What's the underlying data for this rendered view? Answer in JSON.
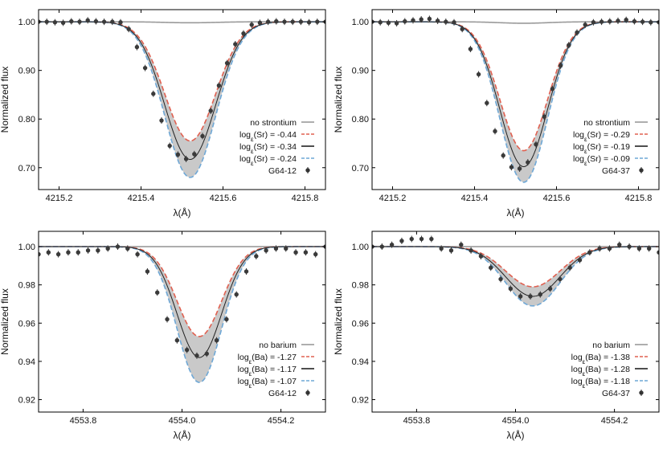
{
  "figure": {
    "ylabel": "Normalized flux",
    "xlabel": "λ(Å)"
  },
  "chart_data": [
    {
      "type": "line",
      "panel": "top-left",
      "xlabel": "λ(Å)",
      "ylabel": "Normalized flux",
      "xlim": [
        4215.15,
        4215.85
      ],
      "ylim": [
        0.655,
        1.025
      ],
      "xticks": [
        "4215.2",
        "4215.4",
        "4215.6",
        "4215.8"
      ],
      "yticks": [
        "0.70",
        "0.80",
        "0.90",
        "1.00"
      ],
      "grid": false,
      "legend_position": "bottom-right",
      "legend": [
        {
          "label_main": "no strontium",
          "label_sub": "",
          "label_rest": "",
          "style": "solid",
          "color": "#9a9a9a",
          "marker": "line"
        },
        {
          "label_main": "log",
          "label_sub": "ε",
          "label_rest": "(Sr) = -0.44",
          "style": "dashed",
          "color": "#e06050",
          "marker": "line"
        },
        {
          "label_main": "log",
          "label_sub": "ε",
          "label_rest": "(Sr) = -0.34",
          "style": "solid",
          "color": "#222222",
          "marker": "line"
        },
        {
          "label_main": "log",
          "label_sub": "ε",
          "label_rest": "(Sr) = -0.24",
          "style": "dashed",
          "color": "#6fa8d6",
          "marker": "line"
        },
        {
          "label_main": "G64-12",
          "label_sub": "",
          "label_rest": "",
          "style": "none",
          "color": "#333333",
          "marker": "point"
        }
      ],
      "model": {
        "center": 4215.52,
        "sigma": 0.062,
        "continuum": 1.0,
        "depths": {
          "weak": 0.245,
          "best": 0.283,
          "strong": 0.32,
          "none": 0.002
        }
      },
      "observed": {
        "x": [
          4215.15,
          4215.17,
          4215.19,
          4215.21,
          4215.23,
          4215.25,
          4215.27,
          4215.29,
          4215.31,
          4215.33,
          4215.35,
          4215.37,
          4215.39,
          4215.41,
          4215.43,
          4215.45,
          4215.47,
          4215.49,
          4215.51,
          4215.53,
          4215.55,
          4215.57,
          4215.59,
          4215.61,
          4215.63,
          4215.65,
          4215.67,
          4215.69,
          4215.71,
          4215.73,
          4215.75,
          4215.77,
          4215.79,
          4215.81,
          4215.83,
          4215.85
        ],
        "y": [
          1.0,
          1.0,
          0.999,
          0.998,
          1.001,
          1.0,
          1.003,
          1.001,
          1.0,
          1.0,
          0.999,
          0.985,
          0.948,
          0.905,
          0.852,
          0.797,
          0.745,
          0.727,
          0.718,
          0.728,
          0.765,
          0.817,
          0.869,
          0.915,
          0.954,
          0.976,
          0.994,
          0.998,
          1.0,
          1.001,
          1.0,
          1.0,
          1.0,
          0.999,
          1.0,
          1.0
        ]
      }
    },
    {
      "type": "line",
      "panel": "top-right",
      "xlabel": "λ(Å)",
      "ylabel": "Normalized flux",
      "xlim": [
        4215.15,
        4215.85
      ],
      "ylim": [
        0.655,
        1.025
      ],
      "xticks": [
        "4215.2",
        "4215.4",
        "4215.6",
        "4215.8"
      ],
      "yticks": [
        "0.70",
        "0.80",
        "0.90",
        "1.00"
      ],
      "grid": false,
      "legend_position": "bottom-right",
      "legend": [
        {
          "label_main": "no strontium",
          "label_sub": "",
          "label_rest": "",
          "style": "solid",
          "color": "#9a9a9a",
          "marker": "line"
        },
        {
          "label_main": "log",
          "label_sub": "ε",
          "label_rest": "(Sr) = -0.29",
          "style": "dashed",
          "color": "#e06050",
          "marker": "line"
        },
        {
          "label_main": "log",
          "label_sub": "ε",
          "label_rest": "(Sr) = -0.19",
          "style": "solid",
          "color": "#222222",
          "marker": "line"
        },
        {
          "label_main": "log",
          "label_sub": "ε",
          "label_rest": "(Sr) = -0.09",
          "style": "dashed",
          "color": "#6fa8d6",
          "marker": "line"
        },
        {
          "label_main": "G64-37",
          "label_sub": "",
          "label_rest": "",
          "style": "none",
          "color": "#333333",
          "marker": "point"
        }
      ],
      "model": {
        "center": 4215.52,
        "sigma": 0.058,
        "continuum": 1.0,
        "depths": {
          "weak": 0.265,
          "best": 0.298,
          "strong": 0.33,
          "none": 0.003
        }
      },
      "observed": {
        "x": [
          4215.15,
          4215.17,
          4215.19,
          4215.21,
          4215.23,
          4215.25,
          4215.27,
          4215.29,
          4215.31,
          4215.33,
          4215.35,
          4215.37,
          4215.39,
          4215.41,
          4215.43,
          4215.45,
          4215.47,
          4215.49,
          4215.51,
          4215.53,
          4215.55,
          4215.57,
          4215.59,
          4215.61,
          4215.63,
          4215.65,
          4215.67,
          4215.69,
          4215.71,
          4215.73,
          4215.75,
          4215.77,
          4215.79,
          4215.81,
          4215.83,
          4215.85
        ],
        "y": [
          1.0,
          0.999,
          0.998,
          0.997,
          1.001,
          1.003,
          1.005,
          1.006,
          1.002,
          1.0,
          0.999,
          0.985,
          0.944,
          0.892,
          0.833,
          0.775,
          0.725,
          0.701,
          0.698,
          0.711,
          0.748,
          0.805,
          0.862,
          0.91,
          0.952,
          0.978,
          0.994,
          0.999,
          1.0,
          1.001,
          1.002,
          1.004,
          1.001,
          1.0,
          0.999,
          0.999
        ]
      }
    },
    {
      "type": "line",
      "panel": "bottom-left",
      "xlabel": "λ(Å)",
      "ylabel": "Normalized flux",
      "xlim": [
        4553.71,
        4554.29
      ],
      "ylim": [
        0.9135,
        1.008
      ],
      "xticks": [
        "4553.8",
        "4554.0",
        "4554.2"
      ],
      "yticks": [
        "0.92",
        "0.94",
        "0.96",
        "0.98",
        "1.00"
      ],
      "grid": false,
      "legend_position": "bottom-right",
      "legend": [
        {
          "label_main": "no barium",
          "label_sub": "",
          "label_rest": "",
          "style": "solid",
          "color": "#9a9a9a",
          "marker": "line"
        },
        {
          "label_main": "log",
          "label_sub": "ε",
          "label_rest": "(Ba) = -1.27",
          "style": "dashed",
          "color": "#e06050",
          "marker": "line"
        },
        {
          "label_main": "log",
          "label_sub": "ε",
          "label_rest": "(Ba) = -1.17",
          "style": "solid",
          "color": "#222222",
          "marker": "line"
        },
        {
          "label_main": "log",
          "label_sub": "ε",
          "label_rest": "(Ba) = -1.07",
          "style": "dashed",
          "color": "#6fa8d6",
          "marker": "line"
        },
        {
          "label_main": "G64-12",
          "label_sub": "",
          "label_rest": "",
          "style": "none",
          "color": "#333333",
          "marker": "point"
        }
      ],
      "model": {
        "center": 4554.035,
        "sigma": 0.045,
        "continuum": 1.0,
        "depths": {
          "weak": 0.047,
          "best": 0.058,
          "strong": 0.071,
          "none": 0.0
        }
      },
      "observed": {
        "x": [
          4553.71,
          4553.73,
          4553.75,
          4553.77,
          4553.79,
          4553.81,
          4553.83,
          4553.85,
          4553.87,
          4553.89,
          4553.91,
          4553.93,
          4553.95,
          4553.97,
          4553.99,
          4554.01,
          4554.03,
          4554.05,
          4554.07,
          4554.09,
          4554.11,
          4554.13,
          4554.15,
          4554.17,
          4554.19,
          4554.21,
          4554.23,
          4554.25,
          4554.27,
          4554.29
        ],
        "y": [
          0.996,
          0.997,
          0.996,
          0.997,
          0.997,
          0.998,
          0.998,
          0.999,
          1.0,
          0.999,
          0.996,
          0.987,
          0.976,
          0.962,
          0.951,
          0.946,
          0.943,
          0.944,
          0.951,
          0.962,
          0.975,
          0.987,
          0.995,
          0.998,
          0.999,
          0.999,
          0.997,
          0.997,
          0.996,
          1.0
        ]
      }
    },
    {
      "type": "line",
      "panel": "bottom-right",
      "xlabel": "λ(Å)",
      "ylabel": "Normalized flux",
      "xlim": [
        4553.71,
        4554.29
      ],
      "ylim": [
        0.9135,
        1.008
      ],
      "xticks": [
        "4553.8",
        "4554.0",
        "4554.2"
      ],
      "yticks": [
        "0.92",
        "0.94",
        "0.96",
        "0.98",
        "1.00"
      ],
      "grid": false,
      "legend_position": "bottom-right",
      "legend": [
        {
          "label_main": "no barium",
          "label_sub": "",
          "label_rest": "",
          "style": "solid",
          "color": "#9a9a9a",
          "marker": "line"
        },
        {
          "label_main": "log",
          "label_sub": "ε",
          "label_rest": "(Ba) = -1.38",
          "style": "dashed",
          "color": "#e06050",
          "marker": "line"
        },
        {
          "label_main": "log",
          "label_sub": "ε",
          "label_rest": "(Ba) = -1.28",
          "style": "solid",
          "color": "#222222",
          "marker": "line"
        },
        {
          "label_main": "log",
          "label_sub": "ε",
          "label_rest": "(Ba) = -1.18",
          "style": "dashed",
          "color": "#6fa8d6",
          "marker": "line"
        },
        {
          "label_main": "G64-37",
          "label_sub": "",
          "label_rest": "",
          "style": "none",
          "color": "#333333",
          "marker": "point"
        }
      ],
      "model": {
        "center": 4554.035,
        "sigma": 0.055,
        "continuum": 1.0,
        "depths": {
          "weak": 0.021,
          "best": 0.026,
          "strong": 0.031,
          "none": 0.0
        }
      },
      "observed": {
        "x": [
          4553.71,
          4553.73,
          4553.75,
          4553.77,
          4553.79,
          4553.81,
          4553.83,
          4553.85,
          4553.87,
          4553.89,
          4553.91,
          4553.93,
          4553.95,
          4553.97,
          4553.99,
          4554.01,
          4554.03,
          4554.05,
          4554.07,
          4554.09,
          4554.11,
          4554.13,
          4554.15,
          4554.17,
          4554.19,
          4554.21,
          4554.23,
          4554.25,
          4554.27,
          4554.29
        ],
        "y": [
          1.0,
          1.0,
          1.001,
          1.003,
          1.004,
          1.004,
          1.004,
          0.999,
          0.998,
          1.001,
          0.998,
          0.995,
          0.989,
          0.983,
          0.978,
          0.974,
          0.974,
          0.975,
          0.978,
          0.983,
          0.989,
          0.993,
          0.997,
          0.999,
          0.999,
          1.001,
          1.0,
          0.999,
          0.999,
          0.997
        ]
      }
    }
  ]
}
